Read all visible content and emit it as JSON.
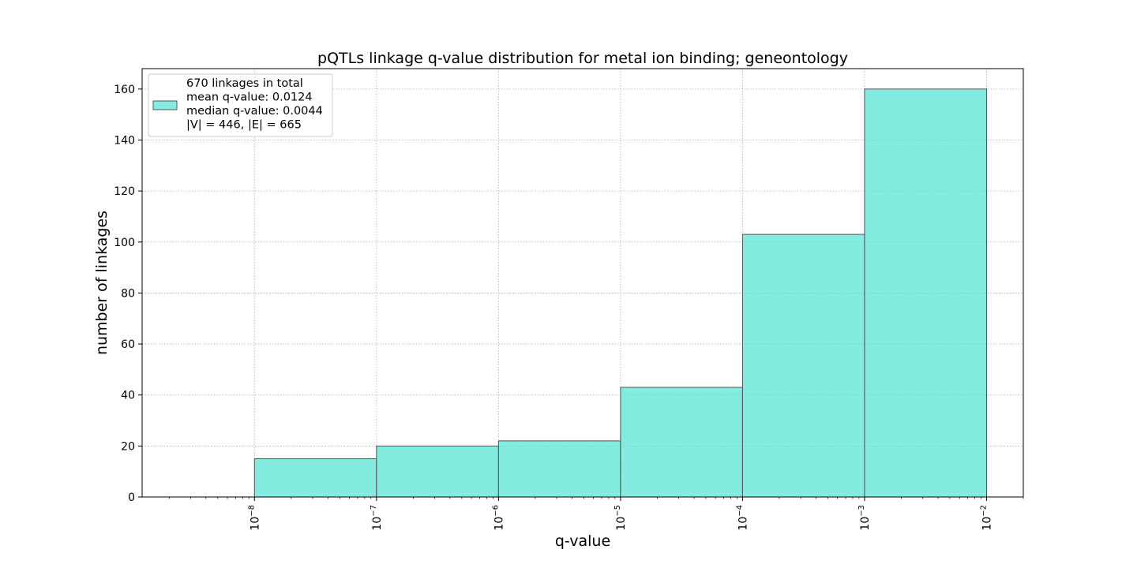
{
  "chart_data": {
    "type": "bar",
    "title": "pQTLs linkage q-value distribution for metal ion binding; geneontology",
    "xlabel": "q-value",
    "ylabel": "number of linkages",
    "x_scale": "log",
    "xlim": [
      1.2e-09,
      0.02
    ],
    "ylim": [
      0,
      168
    ],
    "yticks": [
      0,
      20,
      40,
      60,
      80,
      100,
      120,
      140,
      160
    ],
    "xticks": [
      {
        "value": 1e-08,
        "base": "10",
        "exp": "−8"
      },
      {
        "value": 1e-07,
        "base": "10",
        "exp": "−7"
      },
      {
        "value": 1e-06,
        "base": "10",
        "exp": "−6"
      },
      {
        "value": 1e-05,
        "base": "10",
        "exp": "−5"
      },
      {
        "value": 0.0001,
        "base": "10",
        "exp": "−4"
      },
      {
        "value": 0.001,
        "base": "10",
        "exp": "−3"
      },
      {
        "value": 0.01,
        "base": "10",
        "exp": "−2"
      }
    ],
    "bins": [
      {
        "from": 1e-08,
        "to": 1e-07,
        "count": 15
      },
      {
        "from": 1e-07,
        "to": 1e-06,
        "count": 20
      },
      {
        "from": 1e-06,
        "to": 1e-05,
        "count": 22
      },
      {
        "from": 1e-05,
        "to": 0.0001,
        "count": 43
      },
      {
        "from": 0.0001,
        "to": 0.001,
        "count": 103
      },
      {
        "from": 0.001,
        "to": 0.01,
        "count": 160
      }
    ],
    "bar_color": "#40E0D0",
    "bar_edge_color": "#555555",
    "grid": true,
    "legend": {
      "placement": "upper-left",
      "lines": [
        "670 linkages in total",
        "mean q-value: 0.0124",
        "median q-value: 0.0044",
        "|V| = 446, |E| = 665"
      ]
    }
  }
}
